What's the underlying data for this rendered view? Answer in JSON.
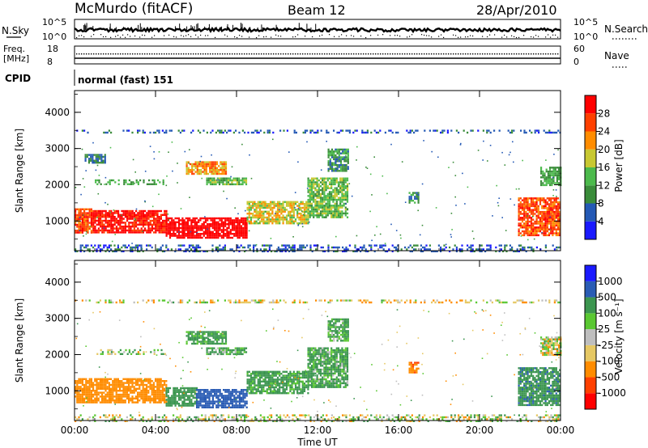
{
  "header": {
    "station": "McMurdo (fitACF)",
    "beam": "Beam 12",
    "date": "28/Apr/2010"
  },
  "top_panels": {
    "nsky_label": "N.Sky",
    "nsky_ticks": [
      "10^5",
      "10^0"
    ],
    "nsearch_label": "N.Search",
    "nsearch_ticks": [
      "10^5",
      "10^0"
    ],
    "freq_label_1": "Freq.",
    "freq_label_2": "[MHz]",
    "freq_ticks": [
      "18",
      "8"
    ],
    "nave_label": "Nave",
    "nave_ticks": [
      "60",
      "0"
    ],
    "cpid_label": "CPID",
    "cpid_value": "normal (fast) 151"
  },
  "colors": {
    "power_scale": [
      "#1a1aff",
      "#2459b5",
      "#3a8c3a",
      "#4cba4c",
      "#c8c832",
      "#ff8c00",
      "#ff4000",
      "#ff0000"
    ],
    "velocity_scale": [
      "#ff0000",
      "#ff4000",
      "#ff8c00",
      "#e6c864",
      "#bebebe",
      "#5ac832",
      "#3c9650",
      "#2a5cb4",
      "#1a1aff"
    ]
  },
  "chart_data": [
    {
      "type": "heatmap",
      "title": "",
      "xlabel": "Time UT",
      "ylabel": "Slant Range [km]",
      "x_ticks": [
        "00:00",
        "04:00",
        "08:00",
        "12:00",
        "16:00",
        "20:00",
        "00:00"
      ],
      "y_ticks": [
        "1000",
        "2000",
        "3000",
        "4000"
      ],
      "xlim_hours": [
        0,
        24
      ],
      "ylim_km": [
        180,
        4600
      ],
      "colorbar": {
        "label": "Power [dB]",
        "ticks": [
          "4",
          "8",
          "12",
          "16",
          "20",
          "24",
          "28"
        ],
        "range": [
          0,
          32
        ]
      },
      "regions": [
        {
          "t0": 0.0,
          "t1": 0.8,
          "r0": 700,
          "r1": 1350,
          "value": 26
        },
        {
          "t0": 0.8,
          "t1": 4.5,
          "r0": 700,
          "r1": 1300,
          "value": 30
        },
        {
          "t0": 4.5,
          "t1": 8.5,
          "r0": 550,
          "r1": 1100,
          "value": 32
        },
        {
          "t0": 8.5,
          "t1": 11.5,
          "r0": 950,
          "r1": 1550,
          "value": 18
        },
        {
          "t0": 11.5,
          "t1": 13.5,
          "r0": 1100,
          "r1": 2200,
          "value": 14
        },
        {
          "t0": 1.0,
          "t1": 4.5,
          "r0": 2000,
          "r1": 2150,
          "value": 12
        },
        {
          "t0": 0.5,
          "t1": 1.5,
          "r0": 2600,
          "r1": 2850,
          "value": 8
        },
        {
          "t0": 5.5,
          "t1": 7.5,
          "r0": 2300,
          "r1": 2650,
          "value": 22
        },
        {
          "t0": 6.5,
          "t1": 8.5,
          "r0": 2000,
          "r1": 2200,
          "value": 14
        },
        {
          "t0": 12.5,
          "t1": 13.5,
          "r0": 2400,
          "r1": 3000,
          "value": 10
        },
        {
          "t0": 16.5,
          "t1": 17.0,
          "r0": 1500,
          "r1": 1800,
          "value": 10
        },
        {
          "t0": 21.9,
          "t1": 24.0,
          "r0": 600,
          "r1": 1650,
          "value": 26
        },
        {
          "t0": 23.0,
          "t1": 24.0,
          "r0": 2000,
          "r1": 2500,
          "value": 12
        },
        {
          "t0": 0.0,
          "t1": 24.0,
          "r0": 180,
          "r1": 350,
          "value": 6
        },
        {
          "t0": 0.0,
          "t1": 24.0,
          "r0": 3420,
          "r1": 3520,
          "value": 6
        }
      ]
    },
    {
      "type": "heatmap",
      "title": "",
      "xlabel": "Time UT",
      "ylabel": "Slant Range [km]",
      "x_ticks": [
        "00:00",
        "04:00",
        "08:00",
        "12:00",
        "16:00",
        "20:00",
        "00:00"
      ],
      "y_ticks": [
        "1000",
        "2000",
        "3000",
        "4000"
      ],
      "xlim_hours": [
        0,
        24
      ],
      "ylim_km": [
        180,
        4600
      ],
      "colorbar": {
        "label": "Velocity [m s⁻¹]",
        "ticks": [
          "1000",
          "500",
          "100",
          "25",
          "-25",
          "-100",
          "-500",
          "-1000"
        ],
        "range": [
          -1200,
          1200
        ]
      },
      "regions": [
        {
          "t0": 0.0,
          "t1": 4.5,
          "r0": 700,
          "r1": 1350,
          "value": -300
        },
        {
          "t0": 4.5,
          "t1": 6.0,
          "r0": 600,
          "r1": 1100,
          "value": 300
        },
        {
          "t0": 6.0,
          "t1": 8.5,
          "r0": 550,
          "r1": 1050,
          "value": 700
        },
        {
          "t0": 8.5,
          "t1": 11.5,
          "r0": 950,
          "r1": 1550,
          "value": 200
        },
        {
          "t0": 11.5,
          "t1": 13.5,
          "r0": 1100,
          "r1": 2200,
          "value": 150
        },
        {
          "t0": 1.0,
          "t1": 4.5,
          "r0": 2000,
          "r1": 2150,
          "value": 40
        },
        {
          "t0": 5.5,
          "t1": 7.5,
          "r0": 2300,
          "r1": 2650,
          "value": 200
        },
        {
          "t0": 6.5,
          "t1": 8.5,
          "r0": 2000,
          "r1": 2200,
          "value": 150
        },
        {
          "t0": 12.5,
          "t1": 13.5,
          "r0": 2400,
          "r1": 3000,
          "value": 150
        },
        {
          "t0": 16.5,
          "t1": 17.0,
          "r0": 1500,
          "r1": 1800,
          "value": -400
        },
        {
          "t0": 21.9,
          "t1": 24.0,
          "r0": 600,
          "r1": 1650,
          "value": 400
        },
        {
          "t0": 23.0,
          "t1": 24.0,
          "r0": 2000,
          "r1": 2500,
          "value": 0
        },
        {
          "t0": 0.0,
          "t1": 24.0,
          "r0": 180,
          "r1": 350,
          "value": 10
        },
        {
          "t0": 0.0,
          "t1": 24.0,
          "r0": 3420,
          "r1": 3520,
          "value": -40
        }
      ]
    }
  ]
}
